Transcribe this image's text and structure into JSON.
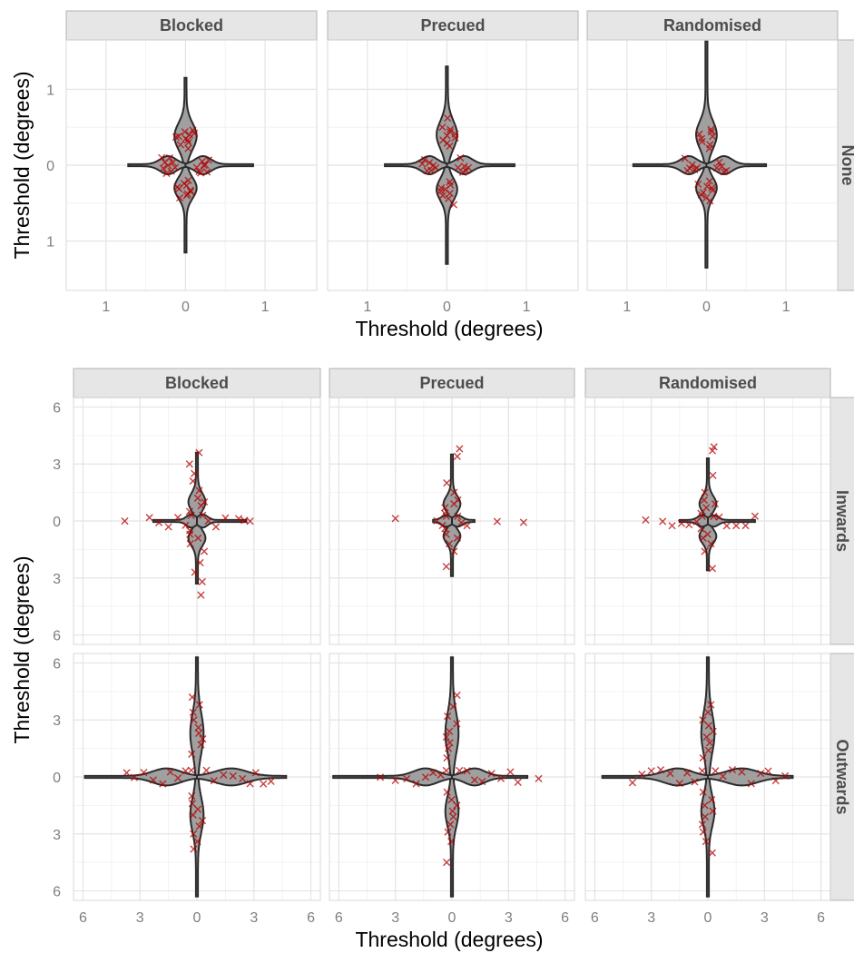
{
  "figure": {
    "background": "#ffffff",
    "panel_background": "#ffffff",
    "strip_background": "#e6e6e6"
  },
  "chart_data": [
    {
      "type": "violin",
      "columns": [
        "Blocked",
        "Precued",
        "Randomised"
      ],
      "rows": [
        "None"
      ],
      "xlabel": "Threshold (degrees)",
      "ylabel": "Threshold (degrees)",
      "xlim": [
        -1.5,
        1.65
      ],
      "ylim": [
        -1.65,
        1.65
      ],
      "x_ticks": [
        -1,
        0,
        1
      ],
      "x_tick_labels": [
        "1",
        "0",
        "1"
      ],
      "y_ticks": [
        1,
        0,
        -1
      ],
      "y_tick_labels": [
        "1",
        "0",
        "1"
      ],
      "violin_color": "#a0a0a0",
      "point_color": "#b30000",
      "panels": [
        {
          "row": "None",
          "column": "Blocked",
          "arms": {
            "up": {
              "tail": 1.15,
              "mode": 0.38,
              "width": 0.28,
              "points": [
                0.22,
                0.27,
                0.3,
                0.33,
                0.35,
                0.37,
                0.38,
                0.4,
                0.42,
                0.44,
                0.46
              ]
            },
            "down": {
              "tail": 1.15,
              "mode": 0.3,
              "width": 0.28,
              "points": [
                0.2,
                0.24,
                0.27,
                0.29,
                0.31,
                0.33,
                0.35,
                0.38,
                0.4,
                0.43
              ]
            },
            "left": {
              "tail": 0.72,
              "mode": 0.22,
              "width": 0.24,
              "points": [
                0.13,
                0.16,
                0.18,
                0.2,
                0.22,
                0.24,
                0.26,
                0.28,
                0.3
              ]
            },
            "right": {
              "tail": 0.85,
              "mode": 0.22,
              "width": 0.24,
              "points": [
                0.14,
                0.17,
                0.19,
                0.21,
                0.23,
                0.25,
                0.27,
                0.29
              ]
            }
          }
        },
        {
          "row": "None",
          "column": "Precued",
          "arms": {
            "up": {
              "tail": 1.3,
              "mode": 0.4,
              "width": 0.26,
              "points": [
                0.25,
                0.29,
                0.33,
                0.36,
                0.39,
                0.41,
                0.44,
                0.47,
                0.5,
                0.62
              ]
            },
            "down": {
              "tail": 1.3,
              "mode": 0.32,
              "width": 0.26,
              "points": [
                0.22,
                0.26,
                0.3,
                0.32,
                0.34,
                0.37,
                0.4,
                0.44,
                0.52
              ]
            },
            "left": {
              "tail": 0.78,
              "mode": 0.22,
              "width": 0.24,
              "points": [
                0.14,
                0.17,
                0.2,
                0.22,
                0.25,
                0.28,
                0.31
              ]
            },
            "right": {
              "tail": 0.85,
              "mode": 0.22,
              "width": 0.24,
              "points": [
                0.14,
                0.17,
                0.2,
                0.22,
                0.24,
                0.27
              ]
            }
          }
        },
        {
          "row": "None",
          "column": "Randomised",
          "arms": {
            "up": {
              "tail": 1.63,
              "mode": 0.4,
              "width": 0.26,
              "points": [
                0.22,
                0.27,
                0.31,
                0.35,
                0.38,
                0.41,
                0.44,
                0.47
              ]
            },
            "down": {
              "tail": 1.35,
              "mode": 0.3,
              "width": 0.26,
              "points": [
                0.21,
                0.25,
                0.28,
                0.3,
                0.33,
                0.36,
                0.39,
                0.43,
                0.47
              ]
            },
            "left": {
              "tail": 0.92,
              "mode": 0.22,
              "width": 0.24,
              "points": [
                0.12,
                0.15,
                0.18,
                0.21,
                0.24,
                0.27
              ]
            },
            "right": {
              "tail": 0.75,
              "mode": 0.22,
              "width": 0.24,
              "points": [
                0.13,
                0.16,
                0.19,
                0.22,
                0.25
              ]
            }
          }
        }
      ]
    },
    {
      "type": "violin",
      "columns": [
        "Blocked",
        "Precued",
        "Randomised"
      ],
      "rows": [
        "Inwards",
        "Outwards"
      ],
      "xlabel": "Threshold (degrees)",
      "ylabel": "Threshold (degrees)",
      "xlim": [
        -6.5,
        6.5
      ],
      "ylim": [
        -6.5,
        6.5
      ],
      "x_ticks": [
        -6,
        -3,
        0,
        3,
        6
      ],
      "x_tick_labels": [
        "6",
        "3",
        "0",
        "3",
        "6"
      ],
      "y_ticks": [
        6,
        3,
        0,
        -3,
        -6
      ],
      "y_tick_labels": [
        "6",
        "3",
        "0",
        "3",
        "6"
      ],
      "violin_color": "#a0a0a0",
      "point_color": "#b30000",
      "panels": [
        {
          "row": "Inwards",
          "column": "Blocked",
          "arms": {
            "up": {
              "tail": 3.6,
              "mode": 1.0,
              "width": 0.9,
              "points": [
                0.5,
                0.8,
                1.0,
                1.2,
                1.6,
                2.1,
                2.5,
                3.0,
                3.6
              ]
            },
            "down": {
              "tail": 3.3,
              "mode": 0.9,
              "width": 0.9,
              "points": [
                0.5,
                0.7,
                0.9,
                1.2,
                1.6,
                2.2,
                2.7,
                3.2,
                3.9
              ]
            },
            "left": {
              "tail": 2.3,
              "mode": 0.3,
              "width": 0.7,
              "points": [
                0.3,
                0.6,
                1.0,
                1.5,
                2.0,
                2.5,
                3.8
              ]
            },
            "right": {
              "tail": 2.6,
              "mode": 0.3,
              "width": 0.7,
              "points": [
                0.3,
                0.6,
                1.0,
                1.5,
                2.2,
                2.5,
                2.8
              ]
            }
          }
        },
        {
          "row": "Inwards",
          "column": "Precued",
          "arms": {
            "up": {
              "tail": 3.5,
              "mode": 0.9,
              "width": 0.9,
              "points": [
                0.4,
                0.7,
                0.9,
                1.1,
                1.5,
                2.0,
                3.4,
                3.8
              ]
            },
            "down": {
              "tail": 2.9,
              "mode": 0.8,
              "width": 0.9,
              "points": [
                0.4,
                0.7,
                0.9,
                1.2,
                1.6,
                2.4
              ]
            },
            "left": {
              "tail": 1.0,
              "mode": 0.3,
              "width": 0.6,
              "points": [
                0.3,
                0.5,
                0.8,
                3.0
              ]
            },
            "right": {
              "tail": 1.2,
              "mode": 0.3,
              "width": 0.6,
              "points": [
                0.3,
                0.5,
                0.8,
                2.4,
                3.8
              ]
            }
          }
        },
        {
          "row": "Inwards",
          "column": "Randomised",
          "arms": {
            "up": {
              "tail": 3.3,
              "mode": 0.9,
              "width": 0.9,
              "points": [
                0.4,
                0.7,
                0.9,
                1.1,
                1.5,
                2.4,
                3.7,
                3.9
              ]
            },
            "down": {
              "tail": 2.6,
              "mode": 0.8,
              "width": 0.9,
              "points": [
                0.4,
                0.7,
                0.9,
                1.2,
                1.6,
                2.5
              ]
            },
            "left": {
              "tail": 1.5,
              "mode": 0.3,
              "width": 0.6,
              "points": [
                0.3,
                0.6,
                1.0,
                1.4,
                1.9,
                2.4,
                3.3
              ]
            },
            "right": {
              "tail": 2.5,
              "mode": 0.3,
              "width": 0.6,
              "points": [
                0.3,
                0.6,
                1.0,
                1.5,
                2.0,
                2.5
              ]
            }
          }
        },
        {
          "row": "Outwards",
          "column": "Blocked",
          "arms": {
            "up": {
              "tail": 6.3,
              "mode": 2.3,
              "width": 0.7,
              "points": [
                1.2,
                1.7,
                2.0,
                2.3,
                2.6,
                3.0,
                3.4,
                3.8,
                4.2
              ]
            },
            "down": {
              "tail": 6.3,
              "mode": 2.0,
              "width": 0.7,
              "points": [
                1.0,
                1.4,
                1.7,
                2.0,
                2.3,
                2.6,
                3.0,
                3.4,
                3.8
              ]
            },
            "left": {
              "tail": 5.9,
              "mode": 1.6,
              "width": 0.9,
              "points": [
                0.3,
                0.6,
                1.0,
                1.4,
                1.8,
                2.3,
                2.8,
                3.3,
                3.7
              ]
            },
            "right": {
              "tail": 4.7,
              "mode": 1.8,
              "width": 0.9,
              "points": [
                0.5,
                0.9,
                1.4,
                1.9,
                2.4,
                2.8,
                3.1,
                3.5,
                3.9
              ]
            }
          }
        },
        {
          "row": "Outwards",
          "column": "Precued",
          "arms": {
            "up": {
              "tail": 6.3,
              "mode": 2.3,
              "width": 0.7,
              "points": [
                1.0,
                1.5,
                1.8,
                2.1,
                2.4,
                2.8,
                3.2,
                3.7,
                4.3
              ]
            },
            "down": {
              "tail": 6.3,
              "mode": 1.8,
              "width": 0.7,
              "points": [
                0.8,
                1.2,
                1.5,
                1.8,
                2.1,
                2.5,
                2.9,
                3.4,
                4.5
              ]
            },
            "left": {
              "tail": 6.3,
              "mode": 1.4,
              "width": 0.9,
              "points": [
                0.3,
                0.6,
                1.0,
                1.4,
                1.9,
                2.4,
                3.0,
                3.8
              ]
            },
            "right": {
              "tail": 4.0,
              "mode": 1.2,
              "width": 0.9,
              "points": [
                0.4,
                0.8,
                1.2,
                1.6,
                2.1,
                2.6,
                3.1,
                3.5,
                4.6
              ]
            }
          }
        },
        {
          "row": "Outwards",
          "column": "Randomised",
          "arms": {
            "up": {
              "tail": 6.3,
              "mode": 2.3,
              "width": 0.7,
              "points": [
                1.0,
                1.4,
                1.8,
                2.1,
                2.4,
                2.7,
                3.0,
                3.4,
                3.8
              ]
            },
            "down": {
              "tail": 6.3,
              "mode": 1.8,
              "width": 0.7,
              "points": [
                0.8,
                1.2,
                1.5,
                1.8,
                2.1,
                2.5,
                2.9,
                3.4,
                4.0
              ]
            },
            "left": {
              "tail": 5.6,
              "mode": 1.6,
              "width": 0.9,
              "points": [
                0.3,
                0.7,
                1.1,
                1.5,
                2.0,
                2.5,
                3.0,
                3.5,
                4.0
              ]
            },
            "right": {
              "tail": 4.5,
              "mode": 1.8,
              "width": 0.9,
              "points": [
                0.4,
                0.8,
                1.3,
                1.8,
                2.3,
                2.8,
                3.2,
                3.6,
                4.1
              ]
            }
          }
        }
      ]
    }
  ]
}
